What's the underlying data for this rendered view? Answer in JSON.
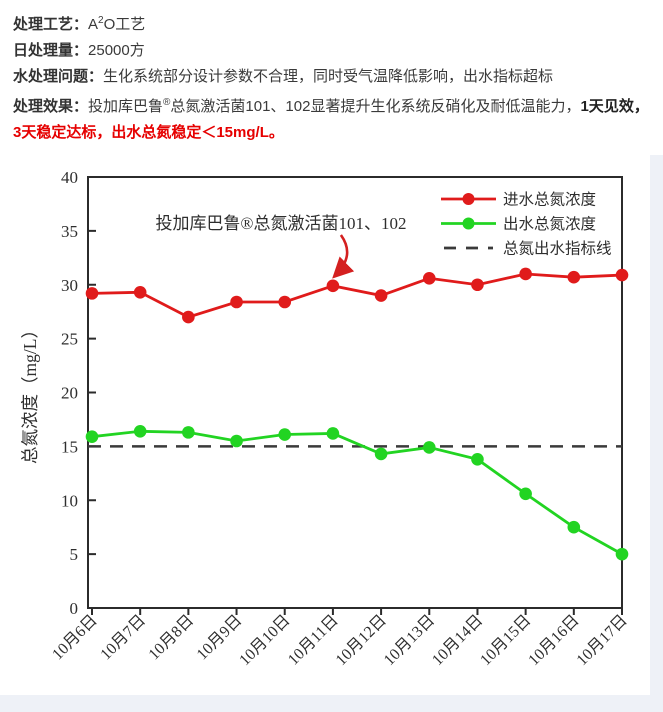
{
  "theme": {
    "page_background": "#eef1f7",
    "card_background": "#ffffff",
    "text_dark": "#3a3a3a",
    "highlight_red": "#e60000",
    "influent_red": "#e01b1b",
    "effluent_green": "#22d422",
    "dashed_gray": "#3a3a3a"
  },
  "info": {
    "line1_label": "处理工艺：",
    "line1_value_pre": "A",
    "line1_sup": "2",
    "line1_value_post": "O工艺",
    "line2_label": "日处理量：",
    "line2_value": "25000方",
    "line3_label": "水处理问题：",
    "line3_value": "生化系统部分设计参数不合理，同时受气温降低影响，出水指标超标",
    "line4_label": "处理效果：",
    "line4_part1": "投加库巴鲁",
    "line4_sup": "®",
    "line4_part2": "总氮激活菌101、102显著提升生化系统反硝化及耐低温能力，",
    "line4_bold_tail": "1天",
    "line5_bold": "见效，",
    "line5_red": "3天稳定达标，出水总氮稳定＜15mg/L。"
  },
  "chart_data": {
    "type": "line",
    "categories": [
      "10月6日",
      "10月7日",
      "10月8日",
      "10月9日",
      "10月10日",
      "10月11日",
      "10月12日",
      "10月13日",
      "10月14日",
      "10月15日",
      "10月16日",
      "10月17日"
    ],
    "series": [
      {
        "name": "进水总氮浓度",
        "color": "#e01b1b",
        "values": [
          29.2,
          29.3,
          27.0,
          28.4,
          28.4,
          29.9,
          29.0,
          30.6,
          30.0,
          31.0,
          30.7,
          30.9
        ]
      },
      {
        "name": "出水总氮浓度",
        "color": "#22d422",
        "values": [
          15.9,
          16.4,
          16.3,
          15.5,
          16.1,
          16.2,
          14.3,
          14.9,
          13.8,
          10.6,
          7.5,
          5.0
        ]
      }
    ],
    "reference_line": {
      "name": "总氮出水指标线",
      "value": 15,
      "style": "dashed",
      "color": "#3a3a3a"
    },
    "ylabel": "总氮浓度（mg/L）",
    "xlabel": "",
    "title": "",
    "ylim": [
      0,
      40
    ],
    "yticks": [
      0,
      5,
      10,
      15,
      20,
      25,
      30,
      35,
      40
    ],
    "grid": false,
    "legend_position": "upper right",
    "annotation": {
      "text": "投加库巴鲁®总氮激活菌101、102",
      "color": "#d42020",
      "target_category": "10月11日",
      "target_series": "进水总氮浓度"
    }
  }
}
